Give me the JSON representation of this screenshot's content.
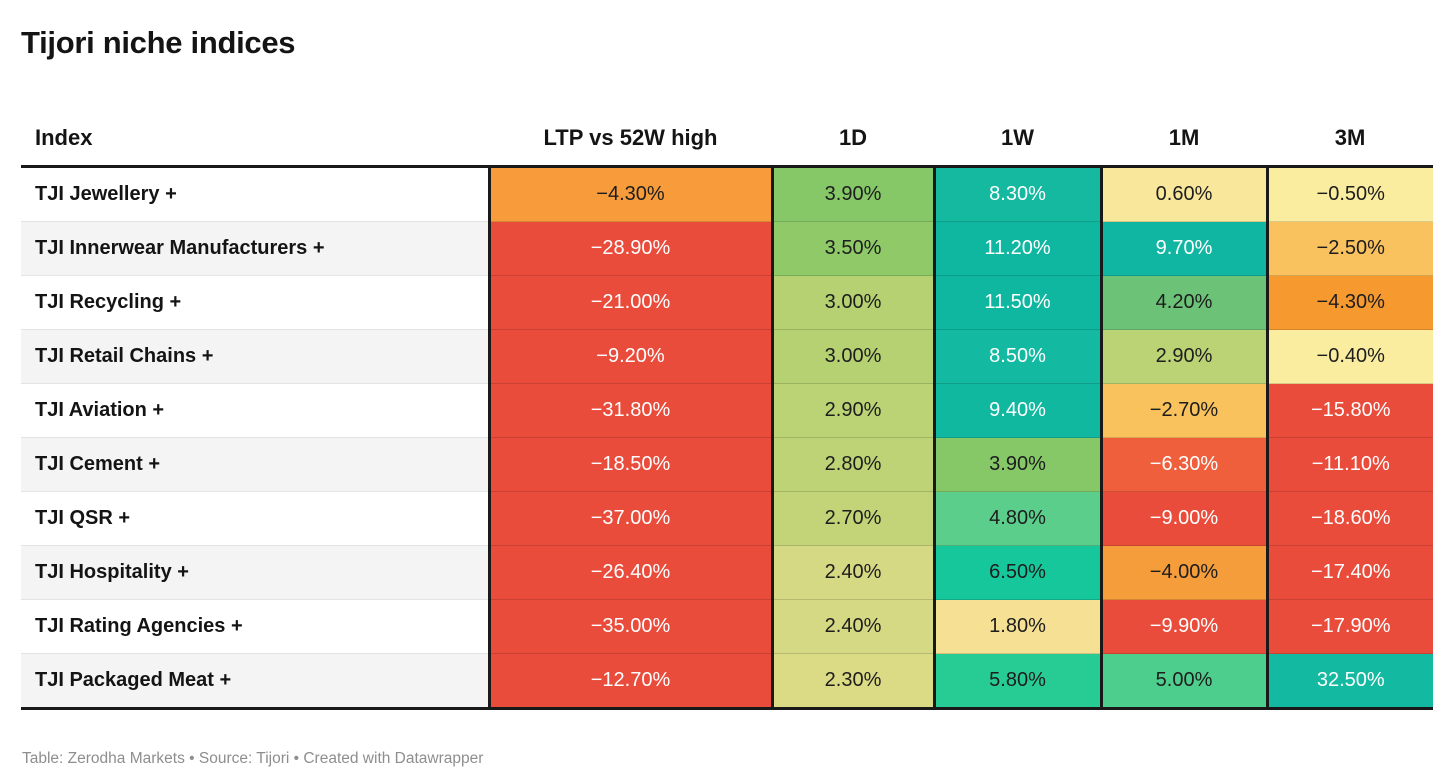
{
  "title": "Tijori niche indices",
  "footer": "Table: Zerodha Markets • Source: Tijori • Created with Datawrapper",
  "colors": {
    "rule": "#191919",
    "dark_text": "#1d1d1d",
    "light_text": "#ffffff",
    "stripe": "#f4f4f4",
    "red": "#E94C3B",
    "teal": "#13B9A0"
  },
  "chart_data": {
    "type": "table",
    "title": "Tijori niche indices",
    "columns": [
      "Index",
      "LTP vs 52W high",
      "1D",
      "1W",
      "1M",
      "3M"
    ],
    "rows": [
      {
        "index": "TJI Jewellery +",
        "values": [
          "−4.30%",
          "3.90%",
          "8.30%",
          "0.60%",
          "−0.50%"
        ],
        "bg": [
          "#F89C3B",
          "#86C767",
          "#14B9A0",
          "#F9E89C",
          "#FAEDA0"
        ],
        "fg": [
          "dark",
          "dark",
          "light",
          "dark",
          "dark"
        ]
      },
      {
        "index": "TJI Innerwear Manufacturers +",
        "values": [
          "−28.90%",
          "3.50%",
          "11.20%",
          "9.70%",
          "−2.50%"
        ],
        "bg": [
          "#E94C3B",
          "#90CA68",
          "#0FB7A1",
          "#10B6A2",
          "#F9C25F"
        ],
        "fg": [
          "light",
          "dark",
          "light",
          "light",
          "dark"
        ]
      },
      {
        "index": "TJI Recycling +",
        "values": [
          "−21.00%",
          "3.00%",
          "11.50%",
          "4.20%",
          "−4.30%"
        ],
        "bg": [
          "#E94C3B",
          "#B5D172",
          "#0FB7A1",
          "#6CC378",
          "#F6992F"
        ],
        "fg": [
          "light",
          "dark",
          "light",
          "dark",
          "dark"
        ]
      },
      {
        "index": "TJI Retail Chains +",
        "values": [
          "−9.20%",
          "3.00%",
          "8.50%",
          "2.90%",
          "−0.40%"
        ],
        "bg": [
          "#E94C3B",
          "#B5D172",
          "#13B9A0",
          "#BBD275",
          "#FAEDA0"
        ],
        "fg": [
          "light",
          "dark",
          "light",
          "dark",
          "dark"
        ]
      },
      {
        "index": "TJI Aviation +",
        "values": [
          "−31.80%",
          "2.90%",
          "9.40%",
          "−2.70%",
          "−15.80%"
        ],
        "bg": [
          "#E94C3B",
          "#BBD275",
          "#11B8A0",
          "#F9C25C",
          "#E94C3B"
        ],
        "fg": [
          "light",
          "dark",
          "light",
          "dark",
          "light"
        ]
      },
      {
        "index": "TJI Cement +",
        "values": [
          "−18.50%",
          "2.80%",
          "3.90%",
          "−6.30%",
          "−11.10%"
        ],
        "bg": [
          "#E94C3B",
          "#BED376",
          "#86C767",
          "#EF5F3C",
          "#E94C3B"
        ],
        "fg": [
          "light",
          "dark",
          "dark",
          "light",
          "light"
        ]
      },
      {
        "index": "TJI QSR +",
        "values": [
          "−37.00%",
          "2.70%",
          "4.80%",
          "−9.00%",
          "−18.60%"
        ],
        "bg": [
          "#E94C3B",
          "#C3D478",
          "#5BCE8C",
          "#E94C3B",
          "#E94C3B"
        ],
        "fg": [
          "light",
          "dark",
          "dark",
          "light",
          "light"
        ]
      },
      {
        "index": "TJI Hospitality +",
        "values": [
          "−26.40%",
          "2.40%",
          "6.50%",
          "−4.00%",
          "−17.40%"
        ],
        "bg": [
          "#E94C3B",
          "#D6D983",
          "#16C79C",
          "#F59D3B",
          "#E94C3B"
        ],
        "fg": [
          "light",
          "dark",
          "dark",
          "dark",
          "light"
        ]
      },
      {
        "index": "TJI Rating Agencies +",
        "values": [
          "−35.00%",
          "2.40%",
          "1.80%",
          "−9.90%",
          "−17.90%"
        ],
        "bg": [
          "#E94C3B",
          "#D6D983",
          "#F5E093",
          "#E94C3B",
          "#E94C3B"
        ],
        "fg": [
          "light",
          "dark",
          "dark",
          "light",
          "light"
        ]
      },
      {
        "index": "TJI Packaged Meat +",
        "values": [
          "−12.70%",
          "2.30%",
          "5.80%",
          "5.00%",
          "32.50%"
        ],
        "bg": [
          "#E94C3B",
          "#DBDA85",
          "#27CC94",
          "#4ECE8D",
          "#13B9A0"
        ],
        "fg": [
          "light",
          "dark",
          "dark",
          "dark",
          "light"
        ]
      }
    ]
  }
}
